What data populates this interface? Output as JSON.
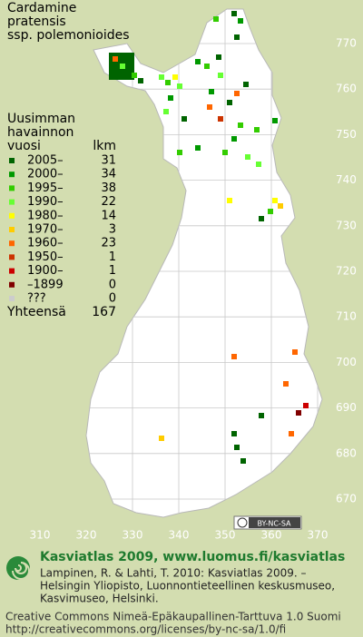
{
  "title": [
    "Cardamine",
    "pratensis",
    "ssp. polemonioides"
  ],
  "legend": {
    "heading": [
      "Uusimman",
      "havainnon"
    ],
    "col_year": "vuosi",
    "col_count": "lkm",
    "rows": [
      {
        "label": "2005–",
        "count": 31,
        "color": "#006400"
      },
      {
        "label": "2000–",
        "count": 34,
        "color": "#009900"
      },
      {
        "label": "1995–",
        "count": 38,
        "color": "#33cc00"
      },
      {
        "label": "1990–",
        "count": 22,
        "color": "#66ff33"
      },
      {
        "label": "1980–",
        "count": 14,
        "color": "#ffff00"
      },
      {
        "label": "1970–",
        "count": 3,
        "color": "#ffcc00"
      },
      {
        "label": "1960–",
        "count": 23,
        "color": "#ff6600"
      },
      {
        "label": "1950–",
        "count": 1,
        "color": "#cc3300"
      },
      {
        "label": "1900–",
        "count": 1,
        "color": "#cc0000"
      },
      {
        "label": "–1899",
        "count": 0,
        "color": "#800000"
      },
      {
        "label": "???",
        "count": 0,
        "color": "#cccccc"
      }
    ],
    "total": {
      "label": "Yhteensä",
      "count": 167
    }
  },
  "grid": {
    "x_labels": [
      310,
      320,
      330,
      340,
      350,
      360,
      370
    ],
    "y_labels": [
      770,
      760,
      750,
      740,
      730,
      720,
      710,
      700,
      690,
      680,
      670
    ]
  },
  "cc_badge": "BY-NC-SA",
  "footer": {
    "title": "Kasviatlas 2009, www.luomus.fi/kasviatlas",
    "citation": [
      "Lampinen, R. & Lahti, T. 2010: Kasviatlas 2009. –",
      "Helsingin Yliopisto, Luonnontieteellinen keskusmuseo,",
      "Kasvimuseo, Helsinki."
    ],
    "license": [
      "Creative Commons Nimeä-Epäkaupallinen-Tarttuva 1.0 Suomi",
      "http://creativecommons.org/licenses/by-nc-sa/1.0/fi"
    ]
  }
}
